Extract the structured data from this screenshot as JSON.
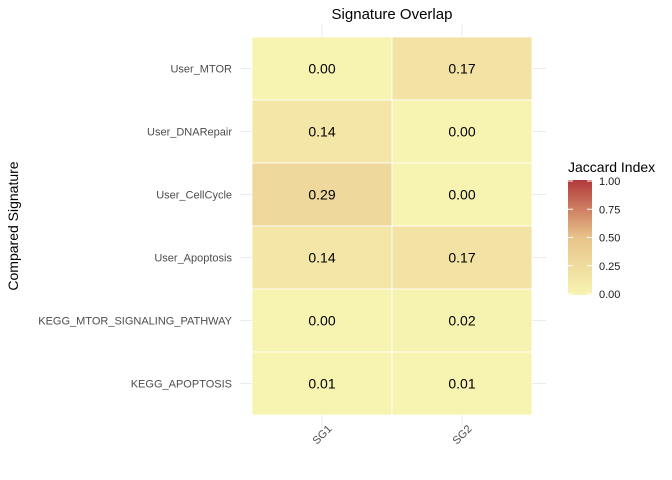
{
  "chart_data": {
    "type": "heatmap",
    "title": "Signature Overlap",
    "xlabel": "",
    "ylabel": "Compared Signature",
    "x_categories": [
      "SG1",
      "SG2"
    ],
    "y_categories": [
      "User_MTOR",
      "User_DNARepair",
      "User_CellCycle",
      "User_Apoptosis",
      "KEGG_MTOR_SIGNALING_PATHWAY",
      "KEGG_APOPTOSIS"
    ],
    "values": [
      [
        0.0,
        0.17
      ],
      [
        0.14,
        0.0
      ],
      [
        0.29,
        0.0
      ],
      [
        0.14,
        0.17
      ],
      [
        0.0,
        0.02
      ],
      [
        0.01,
        0.01
      ]
    ],
    "value_labels": [
      [
        "0.00",
        "0.17"
      ],
      [
        "0.14",
        "0.00"
      ],
      [
        "0.29",
        "0.00"
      ],
      [
        "0.14",
        "0.17"
      ],
      [
        "0.00",
        "0.02"
      ],
      [
        "0.01",
        "0.01"
      ]
    ],
    "legend": {
      "title": "Jaccard Index",
      "range": [
        0,
        1
      ],
      "ticks": [
        "1.00",
        "0.75",
        "0.50",
        "0.25",
        "0.00"
      ],
      "tick_values": [
        1.0,
        0.75,
        0.5,
        0.25,
        0.0
      ],
      "placement": "right"
    },
    "colors": {
      "low": "#f7f4b2",
      "mid": "#e8c38a",
      "high": "#b2393a"
    },
    "grid": true
  }
}
